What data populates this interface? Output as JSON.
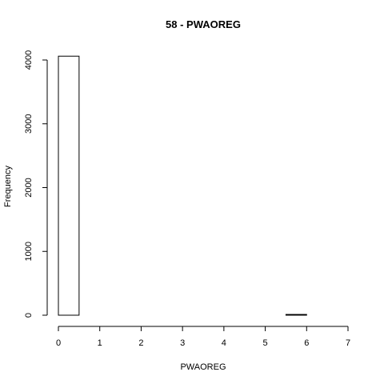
{
  "chart_data": {
    "type": "bar",
    "title": "58 - PWAOREG",
    "xlabel": "PWAOREG",
    "ylabel": "Frequency",
    "xlim": [
      0,
      7
    ],
    "ylim": [
      0,
      4000
    ],
    "grid": false,
    "bins": [
      {
        "x0": 0.0,
        "x1": 0.5,
        "count": 4060
      },
      {
        "x0": 0.5,
        "x1": 1.0,
        "count": 0
      },
      {
        "x0": 1.0,
        "x1": 1.5,
        "count": 0
      },
      {
        "x0": 1.5,
        "x1": 2.0,
        "count": 0
      },
      {
        "x0": 2.0,
        "x1": 2.5,
        "count": 0
      },
      {
        "x0": 2.5,
        "x1": 3.0,
        "count": 0
      },
      {
        "x0": 3.0,
        "x1": 3.5,
        "count": 0
      },
      {
        "x0": 3.5,
        "x1": 4.0,
        "count": 0
      },
      {
        "x0": 4.0,
        "x1": 4.5,
        "count": 0
      },
      {
        "x0": 4.5,
        "x1": 5.0,
        "count": 0
      },
      {
        "x0": 5.0,
        "x1": 5.5,
        "count": 0
      },
      {
        "x0": 5.5,
        "x1": 6.0,
        "count": 12
      },
      {
        "x0": 6.0,
        "x1": 6.5,
        "count": 0
      },
      {
        "x0": 6.5,
        "x1": 7.0,
        "count": 0
      }
    ],
    "x_ticks": [
      "0",
      "1",
      "2",
      "3",
      "4",
      "5",
      "6",
      "7"
    ],
    "y_ticks": [
      "0",
      "1000",
      "2000",
      "3000",
      "4000"
    ]
  }
}
